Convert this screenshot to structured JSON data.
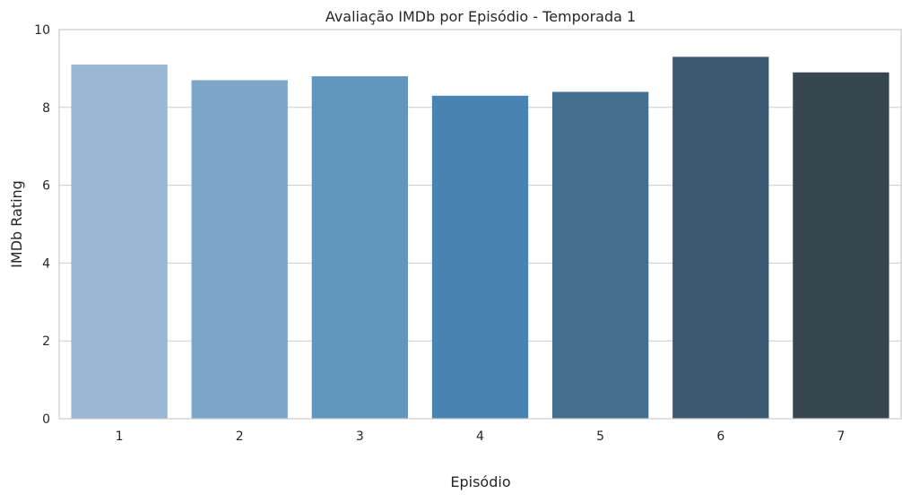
{
  "chart_data": {
    "type": "bar",
    "title": "Avaliação IMDb por Episódio - Temporada 1",
    "xlabel": "Episódio",
    "ylabel": "IMDb Rating",
    "categories": [
      "1",
      "2",
      "3",
      "4",
      "5",
      "6",
      "7"
    ],
    "values": [
      9.1,
      8.7,
      8.8,
      8.3,
      8.4,
      9.3,
      8.9
    ],
    "ylim": [
      0,
      10
    ],
    "yticks": [
      "0",
      "2",
      "4",
      "6",
      "8",
      "10"
    ],
    "grid": "horizontal",
    "legend": "none",
    "bar_colors": [
      "#98b8d3",
      "#7ba6c7",
      "#6296bc",
      "#4884b2",
      "#44708f",
      "#3c5a6f",
      "#37464f"
    ],
    "grid_color": "#cccccc",
    "frame_color": "#cccccc"
  }
}
